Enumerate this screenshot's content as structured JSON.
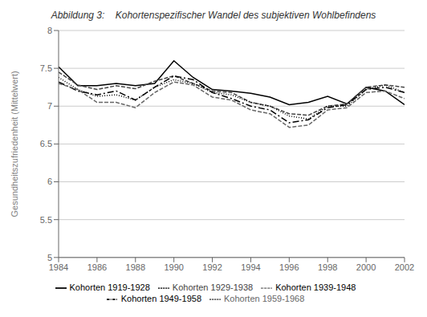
{
  "chart_data": {
    "type": "line",
    "title": "Abbildung 3:    Kohortenspezifischer Wandel des subjektiven Wohlbefindens",
    "ylabel": "Gesundheitszufriedenheit (Mittelwert)",
    "x": [
      1984,
      1985,
      1986,
      1987,
      1988,
      1989,
      1990,
      1991,
      1992,
      1993,
      1994,
      1995,
      1996,
      1997,
      1998,
      1999,
      2000,
      2001,
      2002
    ],
    "xlim": [
      1984,
      2002
    ],
    "xticks": [
      1984,
      1986,
      1988,
      1990,
      1992,
      1994,
      1996,
      1998,
      2000,
      2002
    ],
    "ylim": [
      5.0,
      8.0
    ],
    "yticks": [
      5,
      5.5,
      6,
      6.5,
      7,
      7.5,
      8
    ],
    "grid": "y",
    "legend": "bottom",
    "series": [
      {
        "name": "Kohorten 1919-1928",
        "color": "#000000",
        "line_style": "solid",
        "values": [
          7.52,
          7.27,
          7.27,
          7.3,
          7.27,
          7.3,
          7.6,
          7.38,
          7.22,
          7.2,
          7.17,
          7.12,
          7.02,
          7.05,
          7.13,
          7.03,
          7.25,
          7.2,
          7.02
        ]
      },
      {
        "name": "Kohorten 1929-1938",
        "color": "#444444",
        "line_style": "dashed",
        "values": [
          7.45,
          7.28,
          7.22,
          7.27,
          7.23,
          7.33,
          7.4,
          7.3,
          7.2,
          7.18,
          7.05,
          7.0,
          6.9,
          6.88,
          7.0,
          7.03,
          7.25,
          7.28,
          7.25
        ]
      },
      {
        "name": "Kohorten 1939-1948",
        "color": "#000000",
        "line_style": "dotted",
        "values": [
          7.38,
          7.22,
          7.13,
          7.15,
          7.08,
          7.25,
          7.35,
          7.3,
          7.18,
          7.15,
          7.05,
          7.0,
          6.87,
          6.83,
          7.0,
          7.0,
          7.22,
          7.28,
          7.18
        ]
      },
      {
        "name": "Kohorten 1949-1958",
        "color": "#000000",
        "line_style": "dashdot",
        "values": [
          7.32,
          7.2,
          7.15,
          7.2,
          7.08,
          7.25,
          7.4,
          7.35,
          7.18,
          7.1,
          7.0,
          6.95,
          6.78,
          6.82,
          6.98,
          7.02,
          7.22,
          7.25,
          7.18
        ]
      },
      {
        "name": "Kohorten 1959-1968",
        "color": "#666666",
        "line_style": "dashed",
        "values": [
          7.3,
          7.22,
          7.05,
          7.05,
          6.98,
          7.18,
          7.32,
          7.28,
          7.12,
          7.08,
          6.95,
          6.9,
          6.72,
          6.75,
          6.95,
          6.98,
          7.18,
          7.2,
          7.1
        ]
      }
    ]
  }
}
